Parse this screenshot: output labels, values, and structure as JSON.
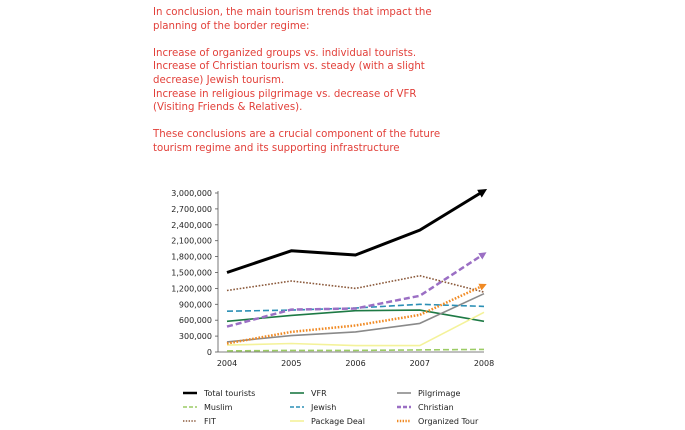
{
  "intro": {
    "heading": "In conclusion, the main tourism trends that impact the planning of the border regime:",
    "points": [
      "Increase of organized groups vs. individual tourists.",
      "Increase of Christian tourism vs. steady (with a slight decrease) Jewish tourism.",
      "Increase in religious pilgrimage vs. decrease of VFR (Visiting Friends & Relatives)."
    ],
    "conclusion": "These conclusions are a crucial component of the future tourism regime and its supporting infrastructure",
    "color": "#e2403a"
  },
  "chart_data": {
    "type": "line",
    "x": [
      "2004",
      "2005",
      "2006",
      "2007",
      "2008"
    ],
    "ylim": [
      0,
      3000000
    ],
    "yticks": [
      0,
      300000,
      600000,
      900000,
      1200000,
      1500000,
      1800000,
      2100000,
      2400000,
      2700000,
      3000000
    ],
    "ytick_labels": [
      "0",
      "300,000",
      "600,000",
      "900,000",
      "1,200,000",
      "1,500,000",
      "1,800,000",
      "2,100,000",
      "2,400,000",
      "2,700,000",
      "3,000,000"
    ],
    "legend_position": "bottom",
    "series": [
      {
        "name": "Total tourists",
        "values": [
          1500000,
          1910000,
          1830000,
          2300000,
          3040000
        ],
        "color": "#000000",
        "style": "solid",
        "width": 3,
        "arrow": true
      },
      {
        "name": "VFR",
        "values": [
          580000,
          690000,
          780000,
          790000,
          580000
        ],
        "color": "#1e7a45",
        "style": "solid",
        "width": 1.6,
        "arrow": false
      },
      {
        "name": "Pilgrimage",
        "values": [
          190000,
          310000,
          380000,
          540000,
          1100000
        ],
        "color": "#8a8a8a",
        "style": "solid",
        "width": 1.6,
        "arrow": false
      },
      {
        "name": "Muslim",
        "values": [
          20000,
          30000,
          30000,
          40000,
          50000
        ],
        "color": "#9ccc65",
        "style": "dashed",
        "width": 1.6,
        "arrow": false
      },
      {
        "name": "Jewish",
        "values": [
          770000,
          790000,
          830000,
          900000,
          860000
        ],
        "color": "#2b8fb5",
        "style": "dashed",
        "width": 1.6,
        "arrow": false
      },
      {
        "name": "Christian",
        "values": [
          480000,
          800000,
          820000,
          1060000,
          1850000
        ],
        "color": "#9b6fc4",
        "style": "dashed",
        "width": 2.5,
        "arrow": true
      },
      {
        "name": "FIT",
        "values": [
          1160000,
          1340000,
          1200000,
          1440000,
          1130000
        ],
        "color": "#8b5a3c",
        "style": "dotted",
        "width": 1.6,
        "arrow": false
      },
      {
        "name": "Package Deal",
        "values": [
          130000,
          160000,
          120000,
          120000,
          750000
        ],
        "color": "#f4f29a",
        "style": "solid",
        "width": 1.6,
        "arrow": false
      },
      {
        "name": "Organized Tour",
        "values": [
          160000,
          380000,
          500000,
          700000,
          1260000
        ],
        "color": "#f08a24",
        "style": "dotted",
        "width": 2.5,
        "arrow": true
      }
    ]
  }
}
